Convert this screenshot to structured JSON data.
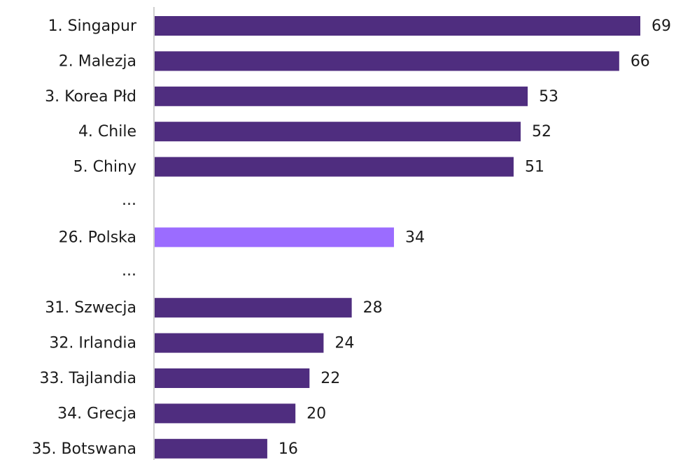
{
  "chart_data": {
    "type": "bar",
    "orientation": "horizontal",
    "title": "",
    "xlabel": "",
    "ylabel": "",
    "xlim": [
      0,
      70
    ],
    "grid": false,
    "legend": "none",
    "categories": [
      "1. Singapur",
      "2. Malezja",
      "3. Korea Płd",
      "4. Chile",
      "5. Chiny",
      "...",
      "26. Polska",
      "...",
      "31. Szwecja",
      "32. Irlandia",
      "33. Tajlandia",
      "34. Grecja",
      "35. Botswana"
    ],
    "values": [
      69,
      66,
      53,
      52,
      51,
      null,
      34,
      null,
      28,
      24,
      22,
      20,
      16
    ],
    "highlight_category": "26. Polska",
    "colors": {
      "bar": "#4f2d7f",
      "highlight": "#9b6cff",
      "axis": "#cfcfcf",
      "text": "#1b1b1b"
    }
  }
}
